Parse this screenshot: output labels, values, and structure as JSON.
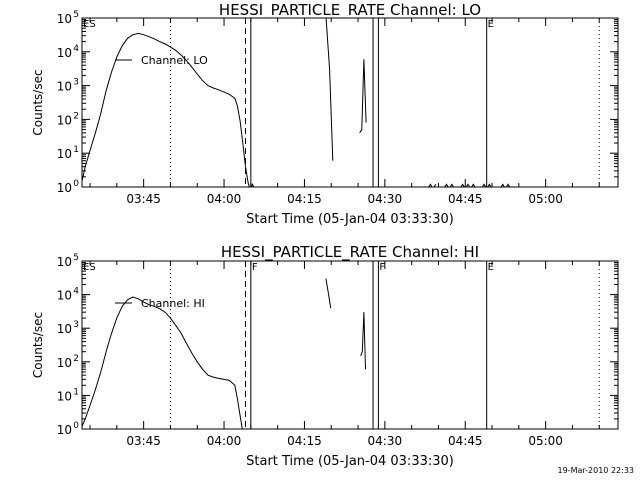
{
  "stamp": "19-Mar-2010 22:33",
  "chart_data": [
    {
      "type": "line",
      "title": "HESSI_PARTICLE_RATE Channel: LO",
      "xlabel": "Start Time (05-Jan-04 03:33:30)",
      "ylabel": "Counts/sec",
      "x_unit": "minutes after 03:33:30",
      "xlim": [
        0,
        100
      ],
      "ylog": true,
      "ylim": [
        1,
        100000
      ],
      "x_ticks": [
        {
          "label": "03:45",
          "value": 11.5
        },
        {
          "label": "04:00",
          "value": 26.5
        },
        {
          "label": "04:15",
          "value": 41.5
        },
        {
          "label": "04:30",
          "value": 56.5
        },
        {
          "label": "04:45",
          "value": 71.5
        },
        {
          "label": "05:00",
          "value": 86.5
        }
      ],
      "y_ticks": [
        {
          "label": "10",
          "exp": "0",
          "value": 1
        },
        {
          "label": "10",
          "exp": "1",
          "value": 10
        },
        {
          "label": "10",
          "exp": "2",
          "value": 100
        },
        {
          "label": "10",
          "exp": "3",
          "value": 1000
        },
        {
          "label": "10",
          "exp": "4",
          "value": 10000
        },
        {
          "label": "10",
          "exp": "5",
          "value": 100000
        }
      ],
      "legend": {
        "label": "Channel: LO",
        "position": "top-left"
      },
      "series": [
        {
          "name": "Channel: LO",
          "segments": [
            [
              [
                0,
                1.5
              ],
              [
                0.6,
                4
              ],
              [
                1.5,
                12
              ],
              [
                2.5,
                40
              ],
              [
                3.5,
                150
              ],
              [
                4.5,
                700
              ],
              [
                5.5,
                2500
              ],
              [
                6.5,
                7000
              ],
              [
                7.5,
                15000
              ],
              [
                8.5,
                25000
              ],
              [
                9.5,
                32000
              ],
              [
                10.5,
                35000
              ],
              [
                11.5,
                32000
              ],
              [
                12.5,
                28000
              ],
              [
                13.5,
                24000
              ],
              [
                14.5,
                20000
              ],
              [
                15.5,
                17000
              ],
              [
                16.5,
                14000
              ],
              [
                17.5,
                11000
              ],
              [
                18.5,
                8000
              ],
              [
                19.5,
                5500
              ],
              [
                20.5,
                3500
              ],
              [
                21.5,
                2200
              ],
              [
                22.5,
                1400
              ],
              [
                23.5,
                1000
              ],
              [
                24.5,
                850
              ],
              [
                25.5,
                750
              ],
              [
                26.5,
                650
              ],
              [
                27.5,
                550
              ],
              [
                28.5,
                420
              ],
              [
                29,
                250
              ],
              [
                29.5,
                90
              ],
              [
                30,
                20
              ],
              [
                30.5,
                4
              ],
              [
                31,
                1.3
              ],
              [
                31.4,
                0.8
              ],
              [
                31.8,
                1.2
              ],
              [
                32.2,
                0.9
              ]
            ],
            [
              [
                45.5,
                120000
              ],
              [
                46.2,
                3000
              ],
              [
                46.8,
                6
              ]
            ],
            [
              [
                51.8,
                40
              ],
              [
                52.2,
                50
              ],
              [
                52.6,
                6000
              ],
              [
                53,
                80
              ]
            ],
            [
              [
                64.5,
                0.9
              ],
              [
                65,
                1.2
              ],
              [
                65.5,
                0.9
              ],
              [
                66,
                1.2
              ]
            ],
            [
              [
                67.5,
                0.9
              ],
              [
                68,
                1.2
              ],
              [
                68.5,
                0.9
              ],
              [
                69,
                1.2
              ],
              [
                69.5,
                0.9
              ]
            ],
            [
              [
                70.5,
                0.9
              ],
              [
                71,
                1.2
              ],
              [
                71.5,
                0.9
              ],
              [
                72,
                1.2
              ],
              [
                72.5,
                0.9
              ],
              [
                73,
                1.2
              ],
              [
                73.5,
                0.9
              ]
            ],
            [
              [
                74.5,
                0.9
              ],
              [
                75,
                1.2
              ],
              [
                75.5,
                0.9
              ],
              [
                76,
                1.2
              ],
              [
                76.5,
                0.9
              ]
            ],
            [
              [
                78,
                0.9
              ],
              [
                78.5,
                1.2
              ],
              [
                79,
                0.9
              ],
              [
                79.5,
                1.2
              ],
              [
                80,
                0.9
              ]
            ]
          ]
        }
      ],
      "event_lines": [
        {
          "value": 16.5,
          "style": "dotted",
          "label": ""
        },
        {
          "value": 30.5,
          "style": "dashed",
          "label": ""
        },
        {
          "value": 31.5,
          "style": "solid",
          "label": ""
        },
        {
          "value": 54.3,
          "style": "solid",
          "label": ""
        },
        {
          "value": 55.3,
          "style": "solid",
          "label": ""
        },
        {
          "value": 75.5,
          "style": "solid",
          "label": "E"
        },
        {
          "value": 96.5,
          "style": "dotted",
          "label": ""
        }
      ],
      "corner_label": "ES"
    },
    {
      "type": "line",
      "title": "HESSI_PARTICLE_RATE Channel: HI",
      "xlabel": "Start Time (05-Jan-04 03:33:30)",
      "ylabel": "Counts/sec",
      "x_unit": "minutes after 03:33:30",
      "xlim": [
        0,
        100
      ],
      "ylog": true,
      "ylim": [
        1,
        100000
      ],
      "x_ticks": [
        {
          "label": "03:45",
          "value": 11.5
        },
        {
          "label": "04:00",
          "value": 26.5
        },
        {
          "label": "04:15",
          "value": 41.5
        },
        {
          "label": "04:30",
          "value": 56.5
        },
        {
          "label": "04:45",
          "value": 71.5
        },
        {
          "label": "05:00",
          "value": 86.5
        }
      ],
      "y_ticks": [
        {
          "label": "10",
          "exp": "0",
          "value": 1
        },
        {
          "label": "10",
          "exp": "1",
          "value": 10
        },
        {
          "label": "10",
          "exp": "2",
          "value": 100
        },
        {
          "label": "10",
          "exp": "3",
          "value": 1000
        },
        {
          "label": "10",
          "exp": "4",
          "value": 10000
        },
        {
          "label": "10",
          "exp": "5",
          "value": 100000
        }
      ],
      "legend": {
        "label": "Channel: HI",
        "position": "top-left"
      },
      "series": [
        {
          "name": "Channel: HI",
          "segments": [
            [
              [
                0,
                1.2
              ],
              [
                0.6,
                2
              ],
              [
                1.5,
                5
              ],
              [
                2.5,
                15
              ],
              [
                3.5,
                50
              ],
              [
                4.5,
                200
              ],
              [
                5.5,
                700
              ],
              [
                6.5,
                2000
              ],
              [
                7.5,
                4500
              ],
              [
                8.5,
                7000
              ],
              [
                9.5,
                8500
              ],
              [
                10.5,
                7500
              ],
              [
                11.5,
                6000
              ],
              [
                12.5,
                5000
              ],
              [
                13.5,
                4500
              ],
              [
                14.5,
                3800
              ],
              [
                15.5,
                3000
              ],
              [
                16.5,
                2000
              ],
              [
                17.5,
                1200
              ],
              [
                18.5,
                700
              ],
              [
                19.5,
                350
              ],
              [
                20.5,
                180
              ],
              [
                21.5,
                100
              ],
              [
                22.5,
                60
              ],
              [
                23.5,
                40
              ],
              [
                24.5,
                35
              ],
              [
                25.5,
                32
              ],
              [
                26.5,
                30
              ],
              [
                27.5,
                28
              ],
              [
                28.5,
                20
              ],
              [
                29,
                8
              ],
              [
                29.5,
                2.5
              ],
              [
                30,
                0.8
              ]
            ],
            [
              [
                45.5,
                30000
              ],
              [
                46,
                10000
              ],
              [
                46.4,
                4000
              ]
            ],
            [
              [
                52,
                150
              ],
              [
                52.3,
                200
              ],
              [
                52.6,
                3000
              ],
              [
                52.9,
                60
              ]
            ]
          ]
        }
      ],
      "event_lines": [
        {
          "value": 16.5,
          "style": "dotted",
          "label": ""
        },
        {
          "value": 30.5,
          "style": "dashed",
          "label": ""
        },
        {
          "value": 31.5,
          "style": "solid",
          "label": "F"
        },
        {
          "value": 54.3,
          "style": "solid",
          "label": ""
        },
        {
          "value": 55.3,
          "style": "solid",
          "label": "F"
        },
        {
          "value": 75.5,
          "style": "solid",
          "label": "E"
        },
        {
          "value": 96.5,
          "style": "dotted",
          "label": ""
        }
      ],
      "corner_label": "ES"
    }
  ]
}
